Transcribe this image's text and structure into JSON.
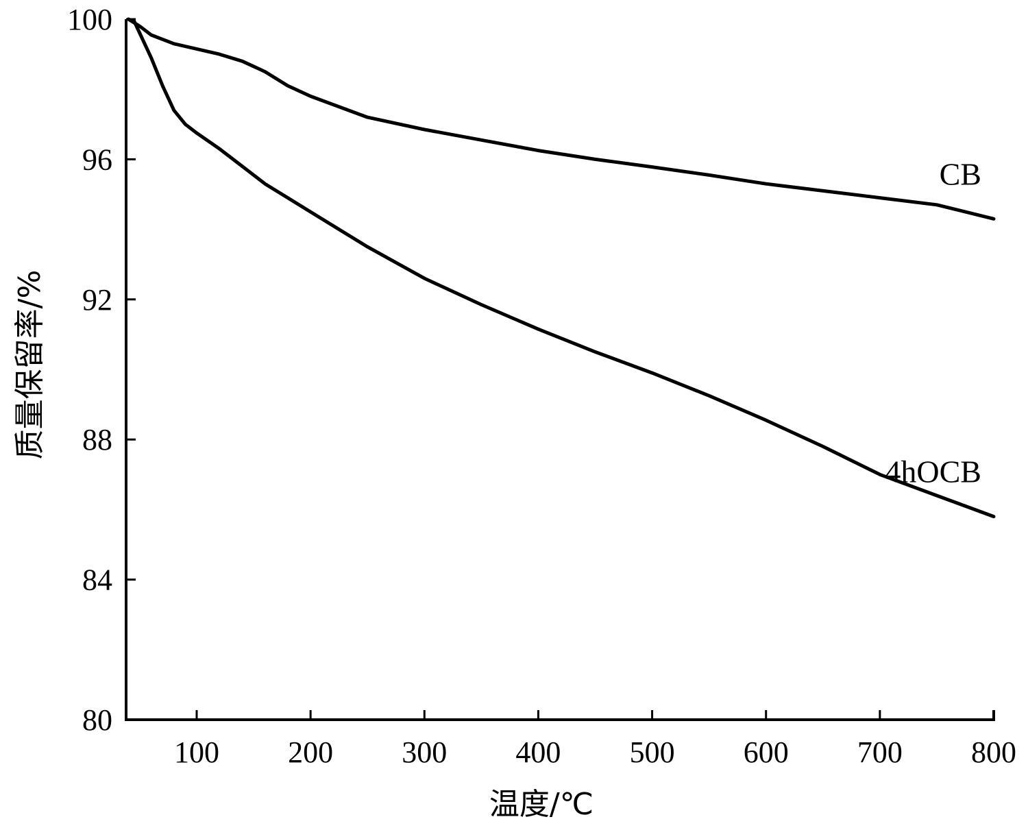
{
  "chart_data": {
    "type": "line",
    "xlabel": "温度/℃",
    "ylabel": "质量保留率/%",
    "xlim": [
      38,
      800
    ],
    "ylim": [
      80,
      100
    ],
    "x_ticks": [
      100,
      200,
      300,
      400,
      500,
      600,
      700,
      800
    ],
    "y_ticks": [
      80,
      84,
      88,
      92,
      96,
      100
    ],
    "grid": false,
    "series": [
      {
        "name": "CB",
        "x": [
          40,
          45,
          50,
          60,
          80,
          100,
          120,
          140,
          160,
          180,
          200,
          250,
          300,
          350,
          400,
          450,
          500,
          550,
          600,
          650,
          700,
          750,
          800
        ],
        "y": [
          100,
          99.9,
          99.8,
          99.55,
          99.3,
          99.15,
          99.0,
          98.8,
          98.5,
          98.1,
          97.8,
          97.2,
          96.85,
          96.55,
          96.25,
          96.0,
          95.78,
          95.55,
          95.3,
          95.1,
          94.9,
          94.7,
          94.3
        ]
      },
      {
        "name": "4hOCB",
        "x": [
          40,
          45,
          50,
          60,
          70,
          80,
          90,
          100,
          120,
          140,
          160,
          180,
          200,
          250,
          300,
          350,
          400,
          450,
          500,
          550,
          600,
          650,
          700,
          750,
          800
        ],
        "y": [
          100,
          99.95,
          99.6,
          98.9,
          98.1,
          97.4,
          97.0,
          96.75,
          96.3,
          95.8,
          95.3,
          94.9,
          94.5,
          93.5,
          92.6,
          91.85,
          91.15,
          90.5,
          89.9,
          89.25,
          88.55,
          87.8,
          87.0,
          86.4,
          85.8
        ]
      }
    ]
  }
}
